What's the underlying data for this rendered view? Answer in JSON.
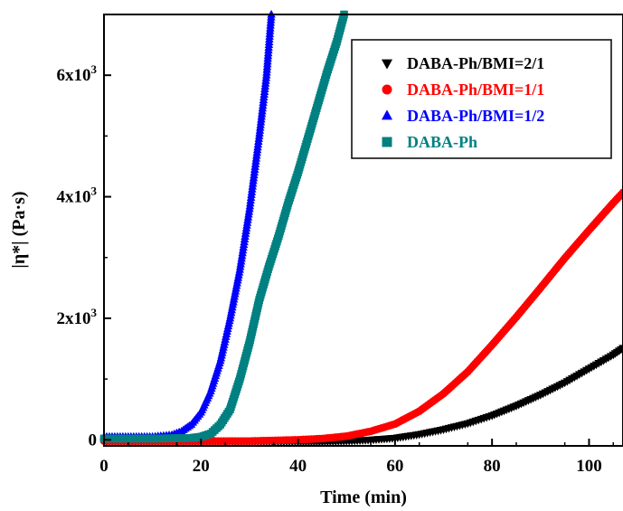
{
  "chart_data": {
    "type": "scatter",
    "xlabel": "Time (min)",
    "ylabel": "|η*| (Pa·s)",
    "xlim": [
      0,
      107
    ],
    "ylim": [
      -100,
      7000
    ],
    "x_ticks": [
      {
        "value": 0,
        "label": "0"
      },
      {
        "value": 20,
        "label": "20"
      },
      {
        "value": 40,
        "label": "40"
      },
      {
        "value": 60,
        "label": "60"
      },
      {
        "value": 80,
        "label": "80"
      },
      {
        "value": 100,
        "label": "100"
      }
    ],
    "y_ticks": [
      {
        "value": 0,
        "label": "0"
      },
      {
        "value": 2000,
        "label": "2x10",
        "exp": "3"
      },
      {
        "value": 4000,
        "label": "4x10",
        "exp": "3"
      },
      {
        "value": 6000,
        "label": "6x10",
        "exp": "3"
      }
    ],
    "grid": false,
    "legend_position": "top-right",
    "series": [
      {
        "name": "DABA-Ph/BMI=2/1",
        "color": "#000000",
        "marker": "triangle-down",
        "points": [
          [
            0,
            -30
          ],
          [
            10,
            -30
          ],
          [
            20,
            -30
          ],
          [
            30,
            -30
          ],
          [
            40,
            -30
          ],
          [
            45,
            -30
          ],
          [
            50,
            -20
          ],
          [
            55,
            0
          ],
          [
            60,
            30
          ],
          [
            65,
            90
          ],
          [
            70,
            170
          ],
          [
            75,
            270
          ],
          [
            80,
            400
          ],
          [
            85,
            560
          ],
          [
            90,
            740
          ],
          [
            95,
            940
          ],
          [
            100,
            1170
          ],
          [
            105,
            1400
          ],
          [
            107,
            1510
          ]
        ]
      },
      {
        "name": "DABA-Ph/BMI=1/1",
        "color": "#ff0000",
        "marker": "circle",
        "points": [
          [
            0,
            -20
          ],
          [
            10,
            -20
          ],
          [
            20,
            -20
          ],
          [
            30,
            -20
          ],
          [
            40,
            0
          ],
          [
            45,
            20
          ],
          [
            50,
            60
          ],
          [
            55,
            140
          ],
          [
            60,
            260
          ],
          [
            65,
            470
          ],
          [
            70,
            760
          ],
          [
            75,
            1120
          ],
          [
            80,
            1560
          ],
          [
            85,
            2020
          ],
          [
            90,
            2500
          ],
          [
            95,
            2990
          ],
          [
            100,
            3450
          ],
          [
            105,
            3900
          ],
          [
            107,
            4070
          ]
        ]
      },
      {
        "name": "DABA-Ph/BMI=1/2",
        "color": "#0000ff",
        "marker": "triangle-up",
        "points": [
          [
            0,
            50
          ],
          [
            5,
            50
          ],
          [
            10,
            50
          ],
          [
            14,
            80
          ],
          [
            16,
            140
          ],
          [
            18,
            250
          ],
          [
            20,
            450
          ],
          [
            22,
            800
          ],
          [
            24,
            1300
          ],
          [
            26,
            2000
          ],
          [
            28,
            2800
          ],
          [
            30,
            3800
          ],
          [
            32,
            5000
          ],
          [
            33.5,
            6000
          ],
          [
            34.5,
            7000
          ]
        ]
      },
      {
        "name": "DABA-Ph",
        "color": "#008080",
        "marker": "square",
        "points": [
          [
            0,
            20
          ],
          [
            10,
            20
          ],
          [
            18,
            30
          ],
          [
            20,
            50
          ],
          [
            22,
            100
          ],
          [
            24,
            250
          ],
          [
            26,
            500
          ],
          [
            28,
            1000
          ],
          [
            30,
            1600
          ],
          [
            32,
            2300
          ],
          [
            34,
            2850
          ],
          [
            36,
            3350
          ],
          [
            38,
            3900
          ],
          [
            40,
            4400
          ],
          [
            42,
            4950
          ],
          [
            44,
            5500
          ],
          [
            46,
            6050
          ],
          [
            48,
            6550
          ],
          [
            49.5,
            7000
          ]
        ]
      }
    ]
  }
}
